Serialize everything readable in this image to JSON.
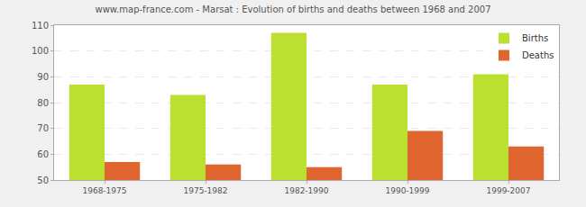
{
  "chart_data": {
    "type": "bar",
    "title": "www.map-france.com - Marsat : Evolution of births and deaths between 1968 and 2007",
    "categories": [
      "1968-1975",
      "1975-1982",
      "1982-1990",
      "1990-1999",
      "1999-2007"
    ],
    "series": [
      {
        "name": "Births",
        "color": "#bbe02f",
        "values": [
          87,
          83,
          107,
          87,
          91
        ]
      },
      {
        "name": "Deaths",
        "color": "#e0652f",
        "values": [
          57,
          56,
          55,
          69,
          63
        ]
      }
    ],
    "ylim": [
      50,
      110
    ],
    "yticks": [
      50,
      60,
      70,
      80,
      90,
      100,
      110
    ],
    "grid": true,
    "legend": "top right"
  }
}
